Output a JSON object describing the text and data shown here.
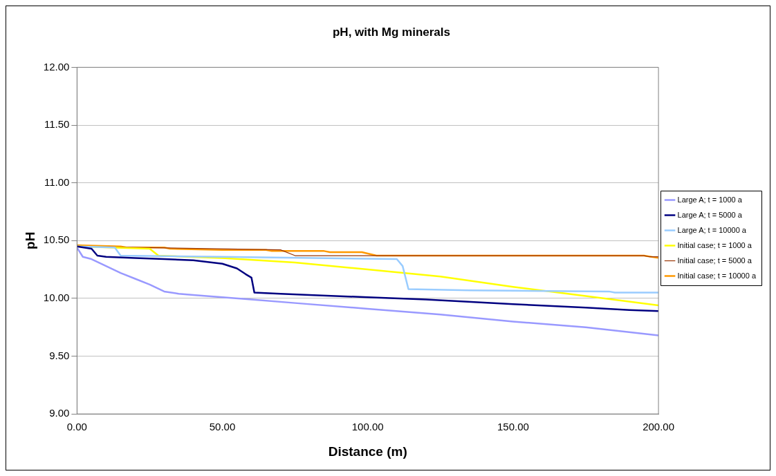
{
  "chart_data": {
    "type": "line",
    "title": "pH, with Mg minerals",
    "xlabel": "Distance (m)",
    "ylabel": "pH",
    "xlim": [
      0,
      200
    ],
    "xticks": [
      {
        "value": 0,
        "label": "0.00"
      },
      {
        "value": 50,
        "label": "50.00"
      },
      {
        "value": 100,
        "label": "100.00"
      },
      {
        "value": 150,
        "label": "150.00"
      },
      {
        "value": 200,
        "label": "200.00"
      }
    ],
    "ylim": [
      9,
      12
    ],
    "yticks": [
      {
        "value": 9,
        "label": "9.00"
      },
      {
        "value": 9.5,
        "label": "9.50"
      },
      {
        "value": 10,
        "label": "10.00"
      },
      {
        "value": 10.5,
        "label": "10.50"
      },
      {
        "value": 11,
        "label": "11.00"
      },
      {
        "value": 11.5,
        "label": "11.50"
      },
      {
        "value": 12,
        "label": "12.00"
      }
    ],
    "grid": "y",
    "legend": "right",
    "marker": "none",
    "line_style": "solid",
    "series": [
      {
        "name": "Large A; t = 1000 a",
        "color": "#9999ff",
        "x": [
          0,
          2,
          5,
          10,
          15,
          20,
          25,
          30,
          35,
          40,
          50,
          60,
          75,
          100,
          125,
          150,
          175,
          200
        ],
        "values": [
          10.44,
          10.36,
          10.34,
          10.28,
          10.22,
          10.17,
          10.12,
          10.06,
          10.04,
          10.03,
          10.01,
          9.99,
          9.96,
          9.91,
          9.86,
          9.8,
          9.75,
          9.68
        ]
      },
      {
        "name": "Large A; t = 5000 a",
        "color": "#000080",
        "x": [
          0,
          5,
          7,
          10,
          20,
          30,
          40,
          50,
          55,
          58,
          60,
          61,
          70,
          80,
          100,
          120,
          150,
          175,
          190,
          200
        ],
        "values": [
          10.45,
          10.43,
          10.37,
          10.36,
          10.35,
          10.34,
          10.33,
          10.3,
          10.26,
          10.21,
          10.18,
          10.05,
          10.04,
          10.03,
          10.01,
          9.99,
          9.95,
          9.92,
          9.9,
          9.89
        ]
      },
      {
        "name": "Large A; t = 10000 a",
        "color": "#99ccff",
        "x": [
          0,
          13,
          15,
          50,
          110,
          112,
          114,
          135,
          183,
          185,
          200
        ],
        "values": [
          10.45,
          10.44,
          10.37,
          10.36,
          10.34,
          10.28,
          10.08,
          10.07,
          10.06,
          10.05,
          10.05
        ]
      },
      {
        "name": "Initial case; t = 1000 a",
        "color": "#ffff00",
        "x": [
          0,
          25,
          28,
          50,
          75,
          100,
          125,
          150,
          175,
          200
        ],
        "values": [
          10.45,
          10.43,
          10.37,
          10.35,
          10.31,
          10.25,
          10.19,
          10.1,
          10.02,
          9.94
        ]
      },
      {
        "name": "Initial case; t = 5000 a",
        "color": "#993300",
        "x": [
          0,
          70,
          75,
          100,
          195,
          197,
          200
        ],
        "values": [
          10.45,
          10.42,
          10.37,
          10.37,
          10.37,
          10.36,
          10.36
        ]
      },
      {
        "name": "Initial case; t = 10000 a",
        "color": "#ff9900",
        "x": [
          0,
          15,
          17,
          30,
          32,
          50,
          65,
          67,
          85,
          87,
          98,
          103,
          195,
          200
        ],
        "values": [
          10.46,
          10.45,
          10.44,
          10.44,
          10.43,
          10.42,
          10.42,
          10.41,
          10.41,
          10.4,
          10.4,
          10.37,
          10.37,
          10.35
        ]
      }
    ]
  }
}
